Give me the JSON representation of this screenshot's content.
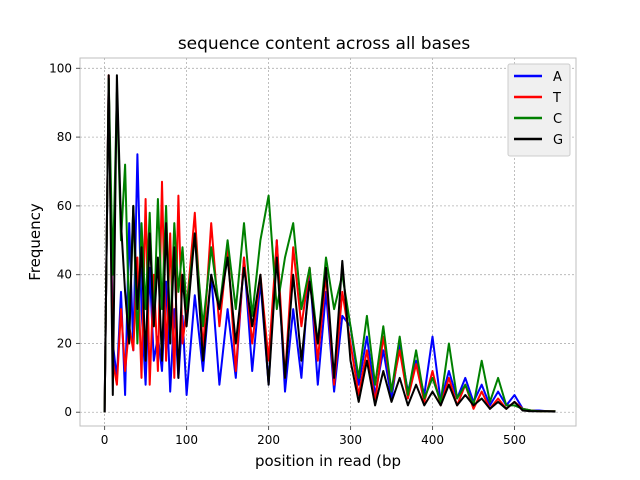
{
  "chart_data": {
    "type": "line",
    "title": "sequence content across all bases",
    "xlabel": "position in read (bp",
    "ylabel": "Frequency",
    "xlim": [
      -30,
      575
    ],
    "ylim": [
      -4,
      103
    ],
    "xticks": [
      0,
      100,
      200,
      300,
      400,
      500
    ],
    "yticks": [
      0,
      20,
      40,
      60,
      80,
      100
    ],
    "grid": true,
    "legend_position": "top-right",
    "series": [
      {
        "name": "A",
        "color": "#0000ff",
        "x": [
          0,
          5,
          10,
          15,
          20,
          25,
          30,
          35,
          40,
          45,
          50,
          55,
          60,
          65,
          70,
          75,
          80,
          85,
          90,
          95,
          100,
          110,
          120,
          130,
          140,
          150,
          160,
          170,
          180,
          190,
          200,
          210,
          220,
          230,
          240,
          250,
          260,
          270,
          280,
          290,
          300,
          310,
          320,
          330,
          340,
          350,
          360,
          370,
          380,
          390,
          400,
          410,
          420,
          430,
          440,
          450,
          460,
          470,
          480,
          490,
          500,
          510,
          520,
          530,
          540,
          550
        ],
        "y": [
          0,
          97,
          20,
          10,
          35,
          5,
          55,
          18,
          75,
          30,
          8,
          42,
          15,
          22,
          12,
          38,
          6,
          30,
          10,
          28,
          5,
          34,
          12,
          40,
          8,
          30,
          10,
          45,
          12,
          38,
          8,
          50,
          6,
          30,
          10,
          42,
          8,
          35,
          6,
          28,
          25,
          8,
          22,
          5,
          18,
          4,
          20,
          6,
          15,
          5,
          22,
          3,
          12,
          4,
          10,
          3,
          8,
          2,
          6,
          2,
          5,
          1,
          0.5,
          0.5,
          0.3,
          0.3
        ]
      },
      {
        "name": "T",
        "color": "#ff0000",
        "x": [
          0,
          5,
          10,
          15,
          20,
          25,
          30,
          35,
          40,
          45,
          50,
          55,
          60,
          65,
          70,
          75,
          80,
          85,
          90,
          95,
          100,
          110,
          120,
          130,
          140,
          150,
          160,
          170,
          180,
          190,
          200,
          210,
          220,
          230,
          240,
          250,
          260,
          270,
          280,
          290,
          300,
          310,
          320,
          330,
          340,
          350,
          360,
          370,
          380,
          390,
          400,
          410,
          420,
          430,
          440,
          450,
          460,
          470,
          480,
          490,
          500,
          510,
          520,
          530,
          540,
          550
        ],
        "y": [
          0,
          98,
          15,
          8,
          30,
          12,
          25,
          18,
          45,
          10,
          62,
          8,
          40,
          12,
          67,
          15,
          52,
          10,
          63,
          20,
          30,
          58,
          18,
          55,
          25,
          48,
          12,
          45,
          20,
          40,
          15,
          50,
          10,
          48,
          25,
          42,
          15,
          40,
          8,
          35,
          20,
          5,
          18,
          3,
          22,
          6,
          18,
          4,
          14,
          3,
          12,
          2,
          10,
          2,
          8,
          1,
          6,
          1,
          4,
          1,
          3,
          1,
          0.5,
          0.3,
          0.3,
          0.3
        ]
      },
      {
        "name": "C",
        "color": "#008000",
        "x": [
          0,
          5,
          10,
          15,
          20,
          25,
          30,
          35,
          40,
          45,
          50,
          55,
          60,
          65,
          70,
          75,
          80,
          85,
          90,
          95,
          100,
          110,
          120,
          130,
          140,
          150,
          160,
          170,
          180,
          190,
          200,
          210,
          220,
          230,
          240,
          250,
          260,
          270,
          280,
          290,
          300,
          310,
          320,
          330,
          340,
          350,
          360,
          370,
          380,
          390,
          400,
          410,
          420,
          430,
          440,
          450,
          460,
          470,
          480,
          490,
          500,
          510,
          520,
          530,
          540,
          550
        ],
        "y": [
          0,
          97,
          40,
          93,
          50,
          72,
          25,
          60,
          20,
          55,
          30,
          58,
          25,
          62,
          30,
          60,
          22,
          55,
          35,
          48,
          30,
          52,
          25,
          48,
          30,
          50,
          30,
          55,
          28,
          50,
          63,
          30,
          45,
          55,
          30,
          42,
          20,
          45,
          30,
          40,
          25,
          10,
          28,
          8,
          25,
          6,
          22,
          5,
          18,
          4,
          10,
          3,
          20,
          4,
          8,
          2,
          15,
          3,
          10,
          2,
          2,
          1,
          0.5,
          0.3,
          0.3,
          0.3
        ]
      },
      {
        "name": "G",
        "color": "#000000",
        "x": [
          0,
          5,
          10,
          15,
          20,
          25,
          30,
          35,
          40,
          45,
          50,
          55,
          60,
          65,
          70,
          75,
          80,
          85,
          90,
          95,
          100,
          110,
          120,
          130,
          140,
          150,
          160,
          170,
          180,
          190,
          200,
          210,
          220,
          230,
          240,
          250,
          260,
          270,
          280,
          290,
          300,
          310,
          320,
          330,
          340,
          350,
          360,
          370,
          380,
          390,
          400,
          410,
          420,
          430,
          440,
          450,
          460,
          470,
          480,
          490,
          500,
          510,
          520,
          530,
          540,
          550
        ],
        "y": [
          0,
          98,
          5,
          98,
          55,
          35,
          20,
          60,
          30,
          48,
          15,
          52,
          25,
          45,
          15,
          55,
          20,
          48,
          10,
          40,
          25,
          52,
          15,
          40,
          30,
          45,
          20,
          42,
          25,
          40,
          8,
          45,
          10,
          40,
          15,
          38,
          20,
          42,
          10,
          44,
          15,
          3,
          15,
          2,
          12,
          3,
          10,
          2,
          8,
          2,
          6,
          2,
          8,
          2,
          5,
          2,
          4,
          1,
          3,
          1,
          3,
          0.5,
          0.3,
          0.3,
          0.3,
          0.2
        ]
      }
    ]
  }
}
